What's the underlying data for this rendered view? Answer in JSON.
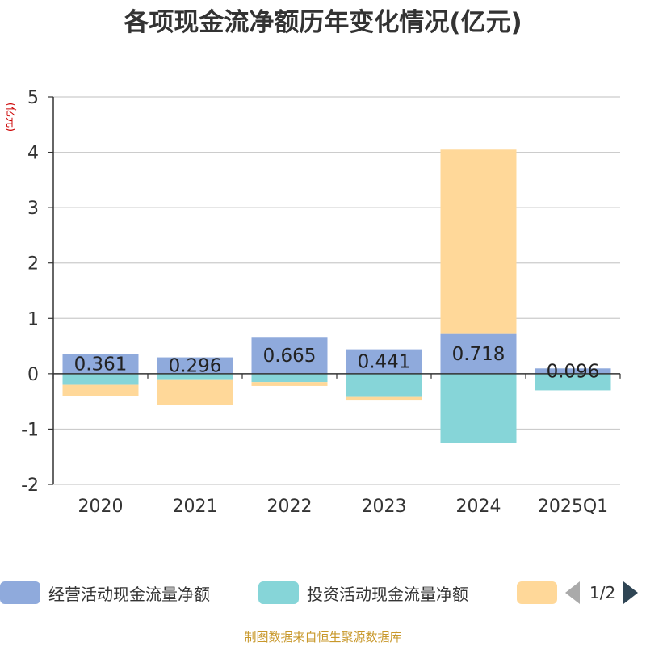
{
  "chart_data": {
    "type": "bar",
    "title": "各项现金流净额历年变化情况(亿元)",
    "ylabel": "(亿元)",
    "categories": [
      "2020",
      "2021",
      "2022",
      "2023",
      "2024",
      "2025Q1"
    ],
    "ylim": [
      -2,
      5
    ],
    "yticks": [
      "5",
      "4",
      "3",
      "2",
      "1",
      "0",
      "-1",
      "-2"
    ],
    "series": [
      {
        "name": "经营活动现金流量净额",
        "color": "#8faadc",
        "values": [
          0.361,
          0.296,
          0.665,
          0.441,
          0.718,
          0.096
        ]
      },
      {
        "name": "投资活动现金流量净额",
        "color": "#86d5d8",
        "values": [
          -0.2,
          -0.1,
          -0.15,
          -0.42,
          -1.25,
          -0.3
        ]
      },
      {
        "name": "",
        "color": "#ffd899",
        "values": [
          -0.2,
          -0.46,
          -0.07,
          -0.05,
          3.33,
          0
        ]
      }
    ],
    "data_labels": [
      "0.361",
      "0.296",
      "0.665",
      "0.441",
      "0.718",
      "0.096"
    ],
    "grid": true,
    "legend_position": "bottom"
  },
  "legend": {
    "page": "1/2"
  },
  "source": "制图数据来自恒生聚源数据库"
}
